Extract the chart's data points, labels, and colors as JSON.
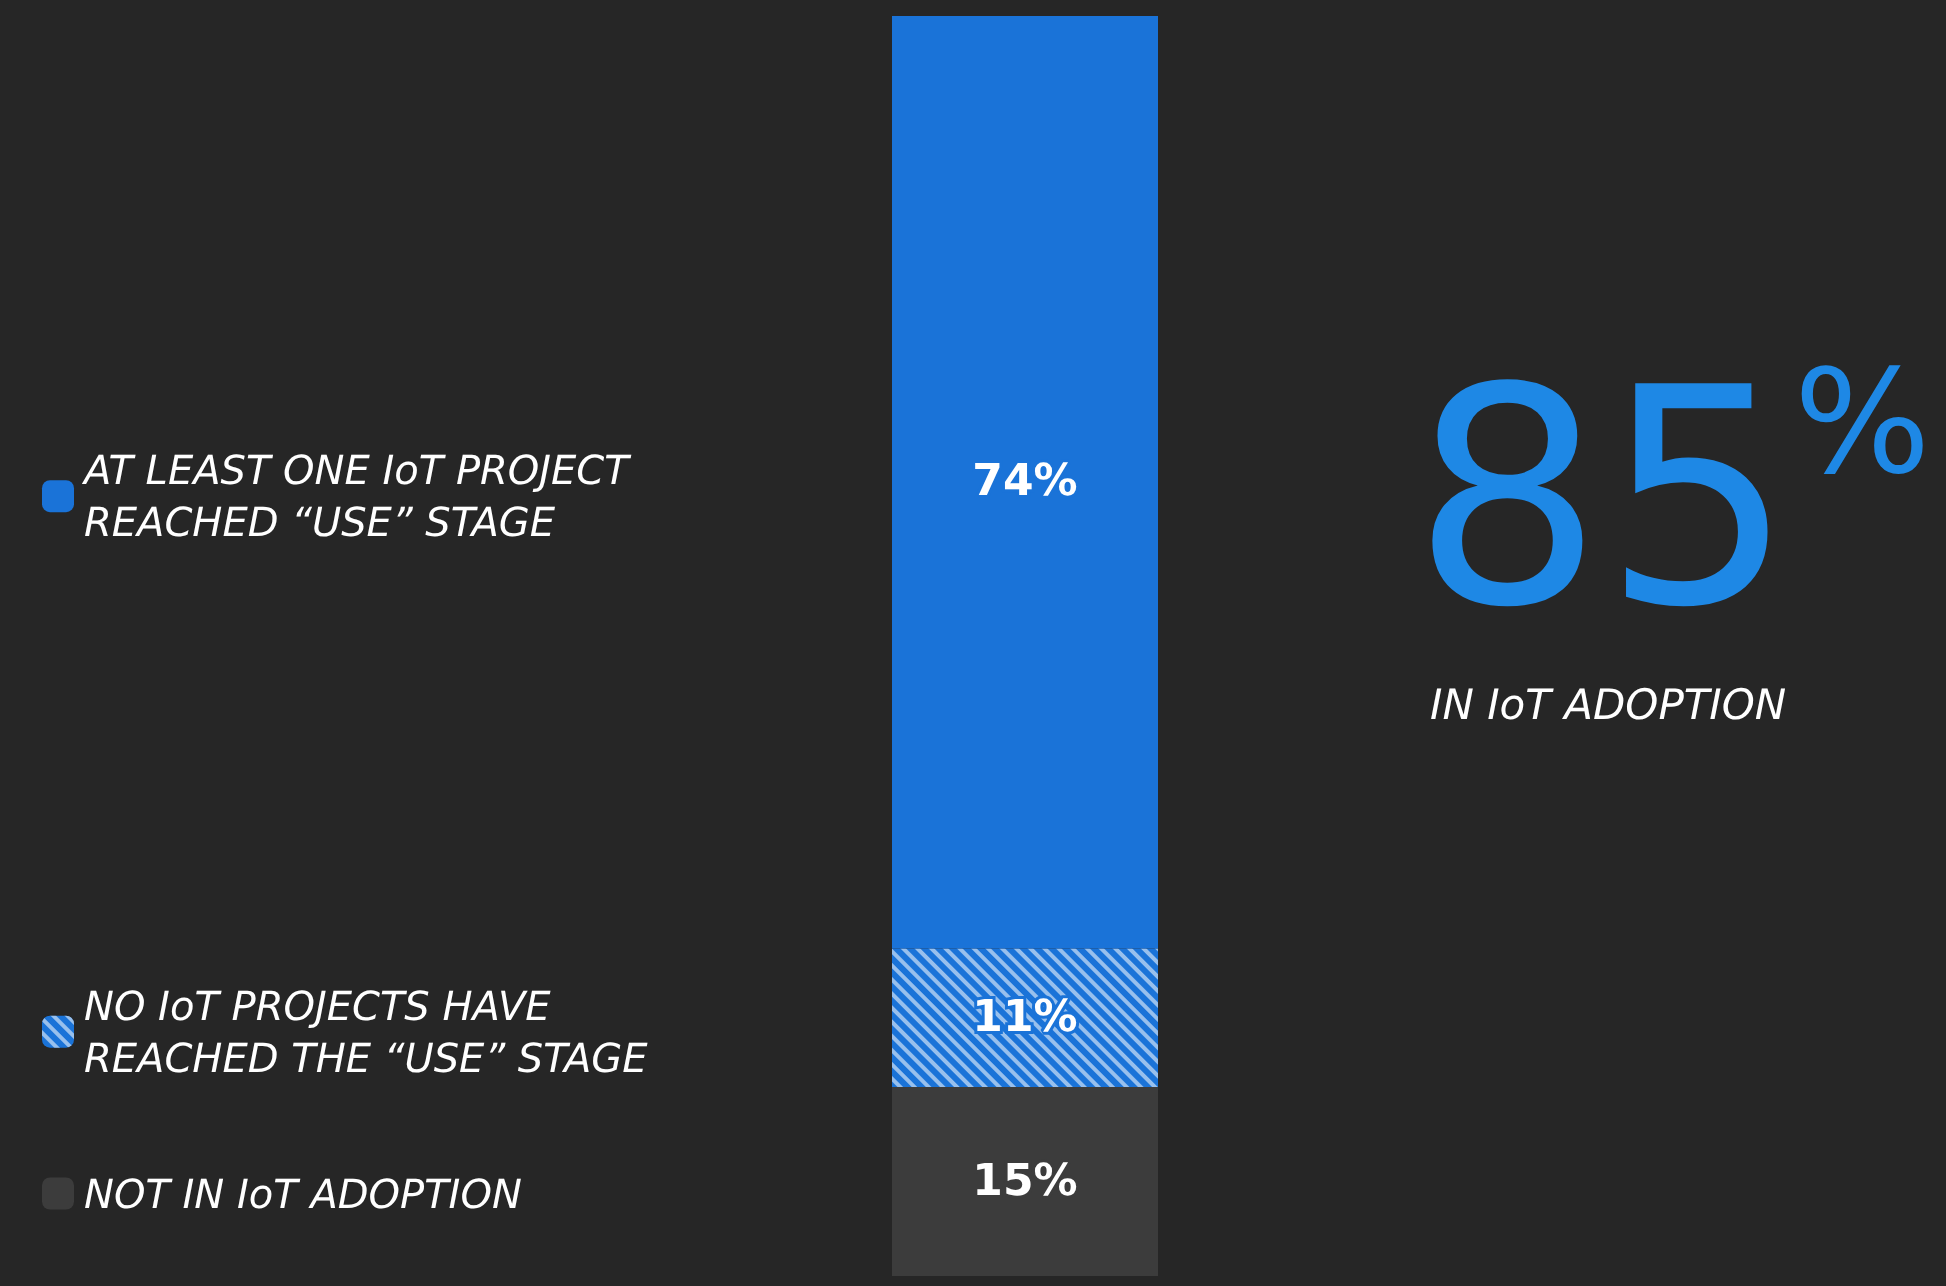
{
  "chart_data": {
    "type": "bar",
    "stacked": true,
    "categories": [
      null
    ],
    "legend": "left",
    "series": [
      {
        "name": "NOT IN IoT ADOPTION",
        "color": "#3c3c3c",
        "values": [
          15
        ],
        "value_labels": [
          "15%"
        ]
      },
      {
        "name": "NO IoT PROJECTS HAVE REACHED THE “USE” STAGE",
        "color": "#1a73d8",
        "values": [
          11
        ],
        "value_labels": [
          "11%"
        ]
      },
      {
        "name": "AT LEAST ONE IoT PROJECT REACHED “USE” STAGE",
        "color": "#1a73d8",
        "values": [
          74
        ],
        "value_labels": [
          "74%"
        ]
      }
    ],
    "annotations": [
      "85%",
      "IN IoT ADOPTION"
    ]
  }
}
